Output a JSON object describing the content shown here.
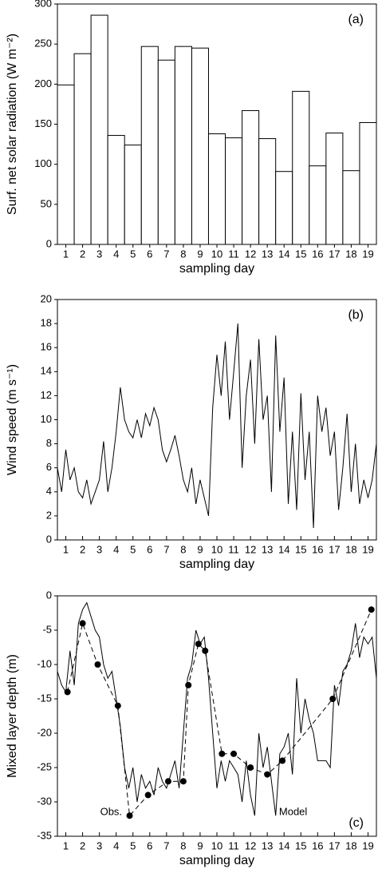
{
  "chart_data": [
    {
      "type": "bar",
      "annotation": "(a)",
      "xlabel": "sampling day",
      "ylabel": "Surf. net solar radiation (W m⁻²)",
      "categories": [
        "1",
        "2",
        "3",
        "4",
        "5",
        "6",
        "7",
        "8",
        "9",
        "10",
        "11",
        "12",
        "13",
        "14",
        "15",
        "16",
        "17",
        "18",
        "19"
      ],
      "values": [
        199,
        238,
        286,
        136,
        124,
        247,
        230,
        247,
        245,
        138,
        133,
        167,
        132,
        91,
        191,
        98,
        139,
        92,
        152
      ],
      "color": "#ffffff",
      "edgecolor": "#000000",
      "ylim": [
        0,
        300
      ],
      "yticks": [
        0,
        50,
        100,
        150,
        200,
        250,
        300
      ]
    },
    {
      "type": "line",
      "annotation": "(b)",
      "xlabel": "sampling day",
      "ylabel": "Wind speed (m s⁻¹)",
      "x": [
        0.5,
        0.75,
        1,
        1.25,
        1.5,
        1.75,
        2,
        2.25,
        2.5,
        2.75,
        3,
        3.25,
        3.5,
        3.75,
        4,
        4.25,
        4.5,
        4.75,
        5,
        5.25,
        5.5,
        5.75,
        6,
        6.25,
        6.5,
        6.75,
        7,
        7.25,
        7.5,
        7.75,
        8,
        8.25,
        8.5,
        8.75,
        9,
        9.25,
        9.5,
        9.75,
        10,
        10.25,
        10.5,
        10.75,
        11,
        11.25,
        11.5,
        11.75,
        12,
        12.25,
        12.5,
        12.75,
        13,
        13.25,
        13.5,
        13.75,
        14,
        14.25,
        14.5,
        14.75,
        15,
        15.25,
        15.5,
        15.75,
        16,
        16.25,
        16.5,
        16.75,
        17,
        17.25,
        17.5,
        17.75,
        18,
        18.25,
        18.5,
        18.75,
        19,
        19.25,
        19.5
      ],
      "series": [
        {
          "color": "#000000",
          "values": [
            6,
            4,
            7.5,
            5,
            6,
            4,
            3.5,
            5,
            3,
            4,
            5,
            8.2,
            4,
            6,
            9,
            12.7,
            10,
            9,
            8.5,
            10,
            8.5,
            10.5,
            9.5,
            11,
            10,
            7.5,
            6.5,
            7.5,
            8.7,
            7,
            5,
            4,
            6,
            3,
            5,
            3.5,
            2,
            11,
            15.4,
            12,
            16.5,
            10,
            14,
            18,
            6,
            12,
            15,
            8,
            16.7,
            10,
            12,
            4,
            17,
            9,
            13.5,
            3,
            9,
            2.5,
            12.2,
            5,
            9,
            1,
            12,
            9,
            11,
            7,
            9,
            2.5,
            6,
            10.5,
            4,
            8,
            3,
            5,
            3.5,
            5,
            8
          ]
        }
      ],
      "xlim": [
        0.5,
        19.5
      ],
      "xticks": [
        1,
        2,
        3,
        4,
        5,
        6,
        7,
        8,
        9,
        10,
        11,
        12,
        13,
        14,
        15,
        16,
        17,
        18,
        19
      ],
      "ylim": [
        0,
        20
      ],
      "yticks": [
        0,
        2,
        4,
        6,
        8,
        10,
        12,
        14,
        16,
        18,
        20
      ]
    },
    {
      "type": "line",
      "annotation": "(c)",
      "xlabel": "sampling day",
      "ylabel": "Mixed layer depth (m)",
      "x": [
        0.5,
        0.75,
        1,
        1.25,
        1.5,
        1.75,
        2,
        2.25,
        2.5,
        2.75,
        3,
        3.25,
        3.5,
        3.75,
        4,
        4.25,
        4.5,
        4.75,
        5,
        5.25,
        5.5,
        5.75,
        6,
        6.25,
        6.5,
        6.75,
        7,
        7.25,
        7.5,
        7.75,
        8,
        8.25,
        8.5,
        8.75,
        9,
        9.25,
        9.5,
        9.75,
        10,
        10.25,
        10.5,
        10.75,
        11,
        11.25,
        11.5,
        11.75,
        12,
        12.25,
        12.5,
        12.75,
        13,
        13.25,
        13.5,
        13.75,
        14,
        14.25,
        14.5,
        14.75,
        15,
        15.25,
        15.5,
        15.75,
        16,
        16.25,
        16.5,
        16.75,
        17,
        17.25,
        17.5,
        17.75,
        18,
        18.25,
        18.5,
        18.75,
        19,
        19.25,
        19.5
      ],
      "series": [
        {
          "name": "Model",
          "color": "#000000",
          "values": [
            -11,
            -13,
            -14,
            -8,
            -13,
            -4,
            -2,
            -1,
            -3,
            -5,
            -6,
            -10,
            -12,
            -11,
            -15,
            -19,
            -25,
            -28,
            -25,
            -30,
            -26,
            -28,
            -27,
            -29,
            -25,
            -27,
            -28,
            -26,
            -24,
            -28,
            -20,
            -12,
            -10,
            -5,
            -7,
            -6,
            -12,
            -20,
            -28,
            -24,
            -27,
            -24,
            -25,
            -26,
            -30,
            -24,
            -29,
            -32,
            -20,
            -25,
            -22,
            -27,
            -32,
            -23,
            -22,
            -20,
            -26,
            -12,
            -20,
            -15,
            -18,
            -20,
            -24,
            -24,
            -24,
            -25,
            -13,
            -16,
            -11,
            -10,
            -8,
            -4,
            -9,
            -6,
            -7,
            -6,
            -12
          ]
        },
        {
          "name": "Obs.",
          "color": "#000000",
          "dashed": true,
          "marker": "circle",
          "x": [
            1.1,
            2,
            2.9,
            4.1,
            4.8,
            5.9,
            7.1,
            8,
            8.3,
            8.9,
            9.3,
            10.3,
            11,
            12,
            13,
            13.9,
            16.9,
            19.2
          ],
          "values": [
            -14,
            -4,
            -10,
            -16,
            -32,
            -29,
            -27,
            -27,
            -13,
            -7,
            -8,
            -23,
            -23,
            -25,
            -26,
            -24,
            -15,
            -2
          ]
        }
      ],
      "xlim": [
        0.5,
        19.5
      ],
      "xticks": [
        1,
        2,
        3,
        4,
        5,
        6,
        7,
        8,
        9,
        10,
        11,
        12,
        13,
        14,
        15,
        16,
        17,
        18,
        19
      ],
      "ylim": [
        -35,
        0
      ],
      "yticks": [
        -35,
        -30,
        -25,
        -20,
        -15,
        -10,
        -5,
        0
      ]
    }
  ]
}
